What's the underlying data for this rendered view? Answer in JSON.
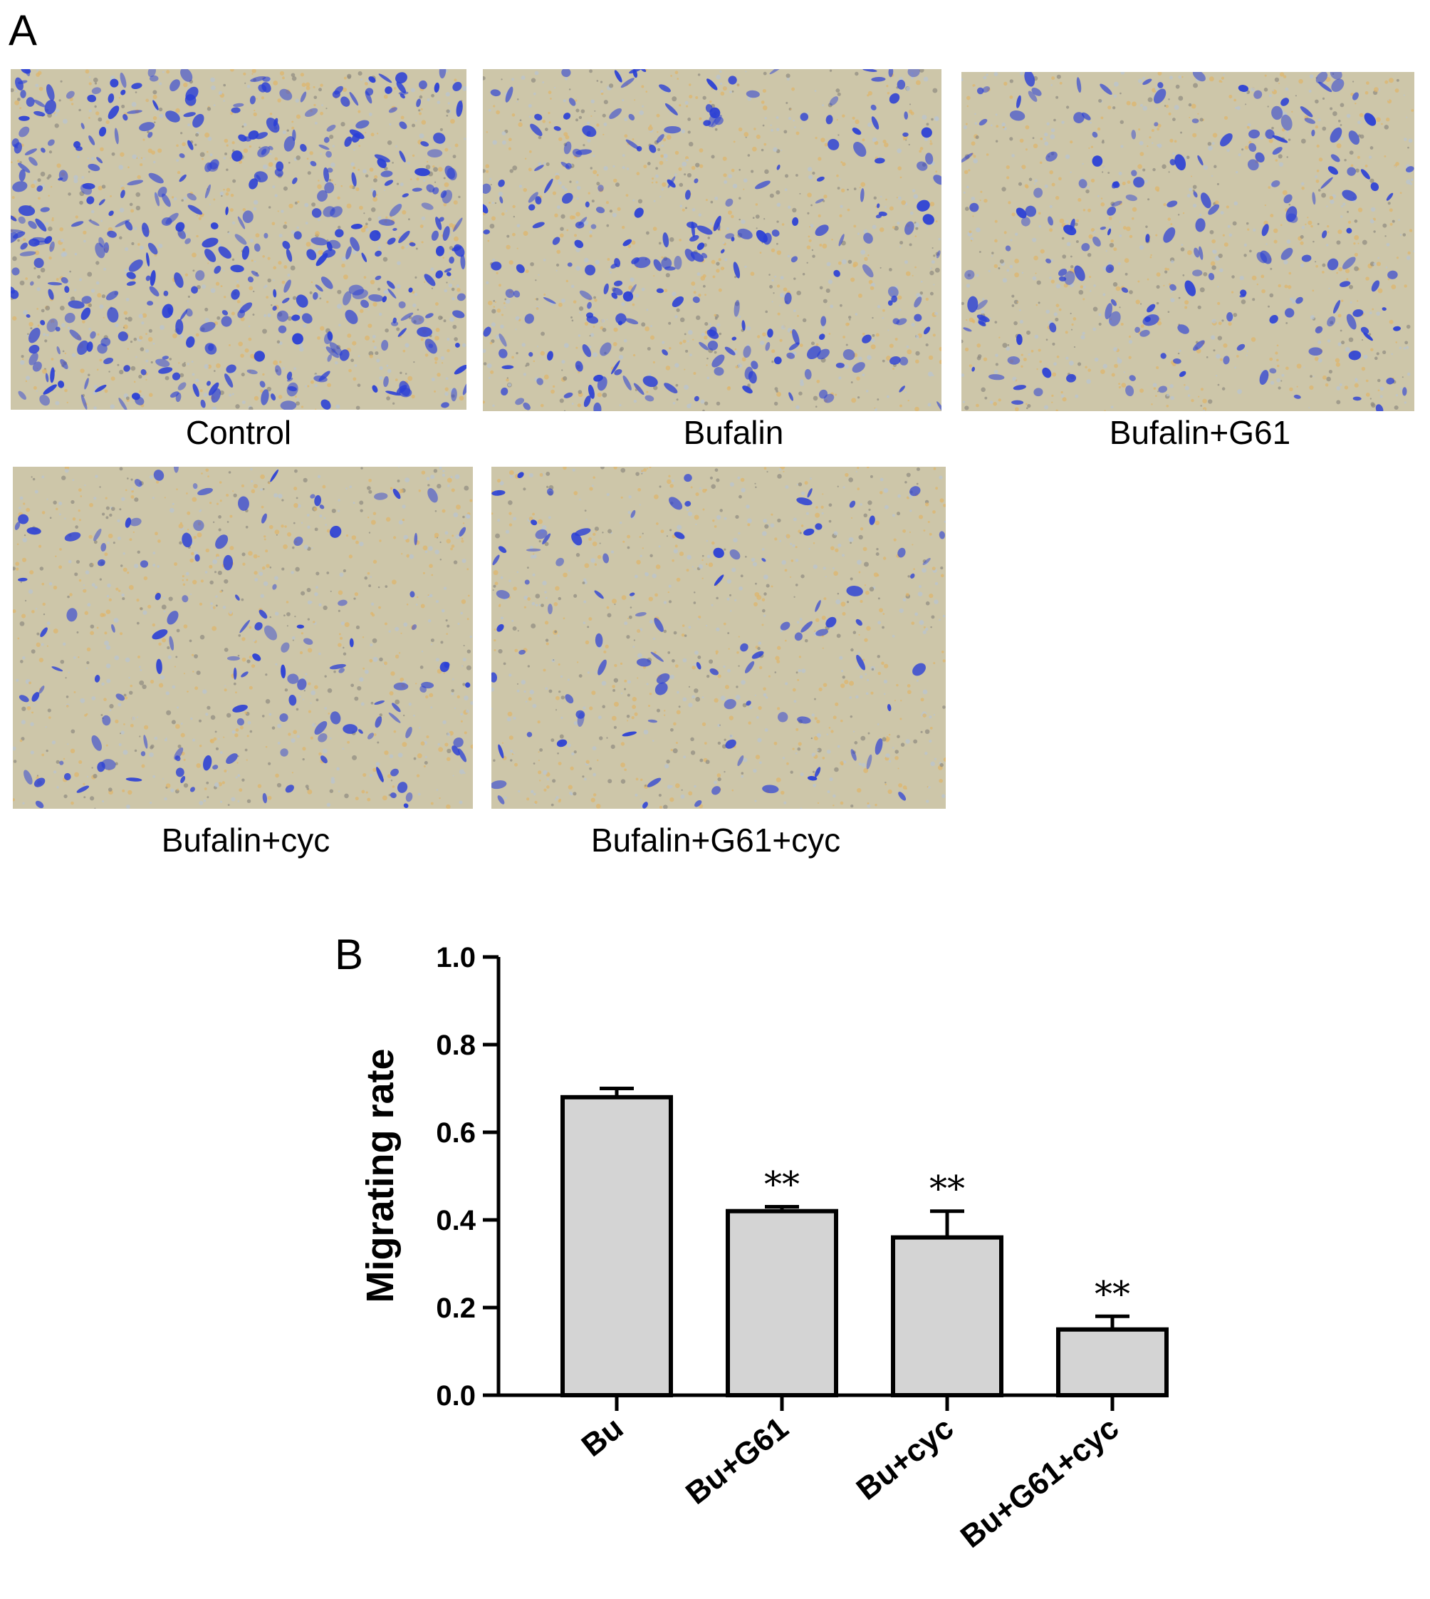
{
  "panel_a": {
    "letter": "A",
    "images": [
      {
        "caption": "Control",
        "density": 0.95
      },
      {
        "caption": "Bufalin",
        "density": 0.55
      },
      {
        "caption": "Bufalin+G61",
        "density": 0.42
      },
      {
        "caption": "Bufalin+cyc",
        "density": 0.3
      },
      {
        "caption": "Bufalin+G61+cyc",
        "density": 0.22
      }
    ],
    "colors": {
      "stain": "#2a3fd6",
      "background": "#cdc6a9"
    }
  },
  "panel_b": {
    "letter": "B"
  },
  "chart_data": {
    "type": "bar",
    "categories": [
      "Bu",
      "Bu+G61",
      "Bu+cyc",
      "Bu+G61+cyc"
    ],
    "values": [
      0.68,
      0.42,
      0.36,
      0.15
    ],
    "error": [
      0.02,
      0.01,
      0.06,
      0.03
    ],
    "significance": [
      "",
      "**",
      "**",
      "**"
    ],
    "ylabel": "Migrating rate",
    "xlabel": "",
    "ylim": [
      0,
      1.0
    ],
    "yticks": [
      "0.0",
      "0.2",
      "0.4",
      "0.6",
      "0.8",
      "1.0"
    ],
    "grid": false,
    "colors": {
      "bar_fill": "#d4d4d4",
      "bar_edge": "#000000"
    }
  }
}
